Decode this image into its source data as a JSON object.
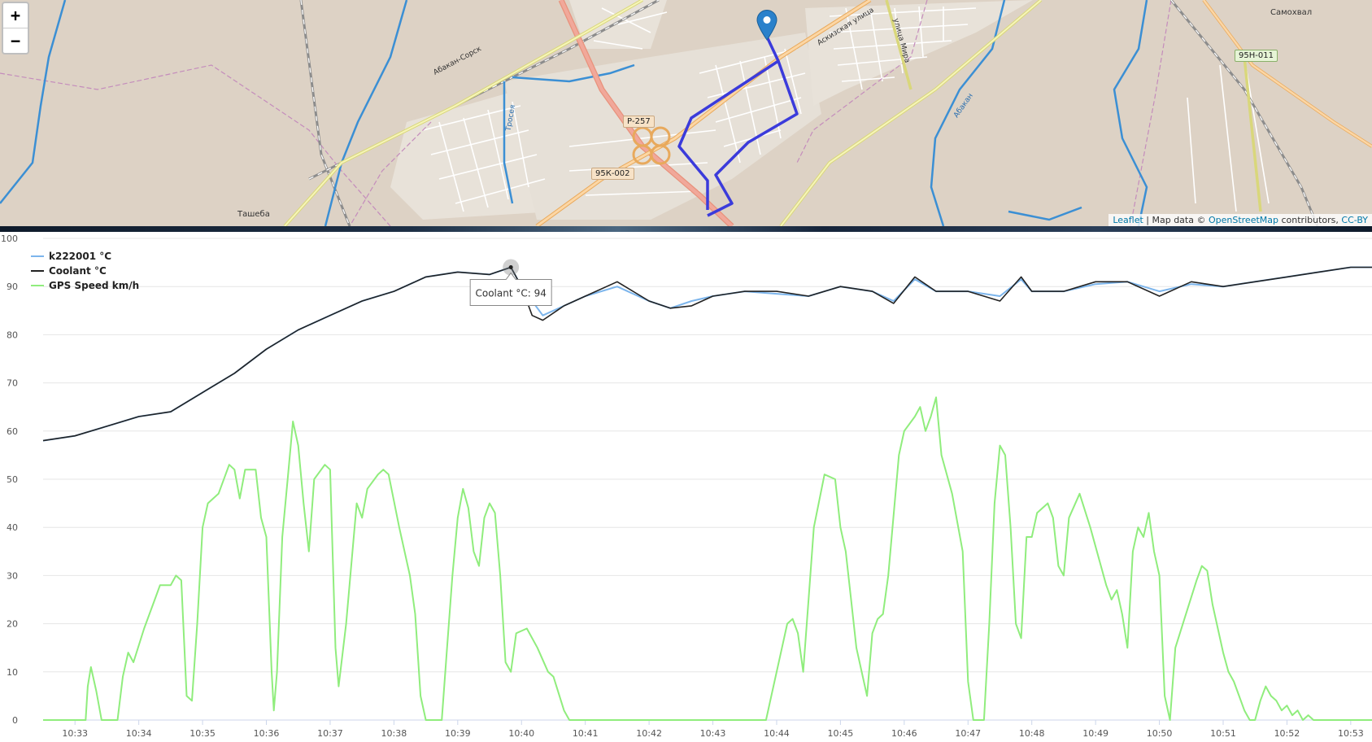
{
  "map": {
    "zoom_in": "+",
    "zoom_out": "−",
    "labels": {
      "samokhval": "Самохвал",
      "tasheba": "Ташеба",
      "abakan_sorsk": "Абакан-Сорск",
      "askizskaya": "Аскизская улица",
      "mira": "улица Мира",
      "abakan_river": "Абакан",
      "tyoe": "Тросея"
    },
    "shields": {
      "r257": "Р-257",
      "k95_002": "95К-002",
      "n95_011": "95Н-011"
    },
    "attribution": {
      "leaflet": "Leaflet",
      "sep": " | Map data © ",
      "osm": "OpenStreetMap",
      "contrib": " contributors, ",
      "license": "CC-BY"
    },
    "route_color": "#3b3bdb",
    "marker_color": "#2a81cb"
  },
  "chart_data": {
    "type": "line",
    "ylim": [
      0,
      100
    ],
    "yticks": [
      0,
      10,
      20,
      30,
      40,
      50,
      60,
      70,
      80,
      90,
      100
    ],
    "xlim": [
      "10:32:30",
      "10:53:20"
    ],
    "xticks": [
      "10:33",
      "10:34",
      "10:35",
      "10:36",
      "10:37",
      "10:38",
      "10:39",
      "10:40",
      "10:41",
      "10:42",
      "10:43",
      "10:44",
      "10:45",
      "10:46",
      "10:47",
      "10:48",
      "10:49",
      "10:50",
      "10:51",
      "10:52",
      "10:53"
    ],
    "grid": true,
    "legend_position": "top-left",
    "series": [
      {
        "name": "k222001 °C",
        "color": "#7cb5ec",
        "points": [
          [
            "10:32:30",
            58
          ],
          [
            "10:33:00",
            59
          ],
          [
            "10:33:30",
            61
          ],
          [
            "10:34:00",
            63
          ],
          [
            "10:34:30",
            64
          ],
          [
            "10:35:00",
            68
          ],
          [
            "10:35:30",
            72
          ],
          [
            "10:36:00",
            77
          ],
          [
            "10:36:30",
            81
          ],
          [
            "10:37:00",
            84
          ],
          [
            "10:37:30",
            87
          ],
          [
            "10:38:00",
            89
          ],
          [
            "10:38:30",
            92
          ],
          [
            "10:39:00",
            93
          ],
          [
            "10:39:30",
            92.5
          ],
          [
            "10:39:50",
            94
          ],
          [
            "10:40:00",
            90
          ],
          [
            "10:40:20",
            84
          ],
          [
            "10:40:40",
            86
          ],
          [
            "10:41:00",
            88
          ],
          [
            "10:41:30",
            90
          ],
          [
            "10:42:00",
            87
          ],
          [
            "10:42:20",
            85.5
          ],
          [
            "10:42:40",
            87
          ],
          [
            "10:43:00",
            88
          ],
          [
            "10:43:30",
            89
          ],
          [
            "10:44:00",
            88.5
          ],
          [
            "10:44:30",
            88
          ],
          [
            "10:45:00",
            90
          ],
          [
            "10:45:30",
            89
          ],
          [
            "10:45:50",
            87
          ],
          [
            "10:46:10",
            91.5
          ],
          [
            "10:46:30",
            89
          ],
          [
            "10:47:00",
            89
          ],
          [
            "10:47:30",
            88
          ],
          [
            "10:47:50",
            91.5
          ],
          [
            "10:48:00",
            89
          ],
          [
            "10:48:30",
            89
          ],
          [
            "10:49:00",
            90.5
          ],
          [
            "10:49:30",
            91
          ],
          [
            "10:50:00",
            89
          ],
          [
            "10:50:30",
            90.5
          ],
          [
            "10:51:00",
            90
          ],
          [
            "10:51:30",
            91
          ],
          [
            "10:52:00",
            92
          ],
          [
            "10:52:30",
            93
          ],
          [
            "10:53:00",
            94
          ],
          [
            "10:53:20",
            94
          ]
        ]
      },
      {
        "name": "Coolant °C",
        "color": "#222222",
        "points": [
          [
            "10:32:30",
            58
          ],
          [
            "10:33:00",
            59
          ],
          [
            "10:33:30",
            61
          ],
          [
            "10:34:00",
            63
          ],
          [
            "10:34:30",
            64
          ],
          [
            "10:35:00",
            68
          ],
          [
            "10:35:30",
            72
          ],
          [
            "10:36:00",
            77
          ],
          [
            "10:36:30",
            81
          ],
          [
            "10:37:00",
            84
          ],
          [
            "10:37:30",
            87
          ],
          [
            "10:38:00",
            89
          ],
          [
            "10:38:30",
            92
          ],
          [
            "10:39:00",
            93
          ],
          [
            "10:39:30",
            92.5
          ],
          [
            "10:39:50",
            94
          ],
          [
            "10:40:00",
            90
          ],
          [
            "10:40:10",
            84
          ],
          [
            "10:40:20",
            83
          ],
          [
            "10:40:40",
            86
          ],
          [
            "10:41:00",
            88
          ],
          [
            "10:41:30",
            91
          ],
          [
            "10:42:00",
            87
          ],
          [
            "10:42:20",
            85.5
          ],
          [
            "10:42:40",
            86
          ],
          [
            "10:43:00",
            88
          ],
          [
            "10:43:30",
            89
          ],
          [
            "10:44:00",
            89
          ],
          [
            "10:44:30",
            88
          ],
          [
            "10:45:00",
            90
          ],
          [
            "10:45:30",
            89
          ],
          [
            "10:45:50",
            86.5
          ],
          [
            "10:46:10",
            92
          ],
          [
            "10:46:30",
            89
          ],
          [
            "10:47:00",
            89
          ],
          [
            "10:47:30",
            87
          ],
          [
            "10:47:50",
            92
          ],
          [
            "10:48:00",
            89
          ],
          [
            "10:48:30",
            89
          ],
          [
            "10:49:00",
            91
          ],
          [
            "10:49:30",
            91
          ],
          [
            "10:50:00",
            88
          ],
          [
            "10:50:30",
            91
          ],
          [
            "10:51:00",
            90
          ],
          [
            "10:51:30",
            91
          ],
          [
            "10:52:00",
            92
          ],
          [
            "10:52:30",
            93
          ],
          [
            "10:53:00",
            94
          ],
          [
            "10:53:20",
            94
          ]
        ]
      },
      {
        "name": "GPS Speed km/h",
        "color": "#90ed7d",
        "points": [
          [
            "10:32:30",
            0
          ],
          [
            "10:33:10",
            0
          ],
          [
            "10:33:12",
            7
          ],
          [
            "10:33:15",
            11
          ],
          [
            "10:33:20",
            6
          ],
          [
            "10:33:25",
            0
          ],
          [
            "10:33:40",
            0
          ],
          [
            "10:33:45",
            9
          ],
          [
            "10:33:50",
            14
          ],
          [
            "10:33:55",
            12
          ],
          [
            "10:34:05",
            19
          ],
          [
            "10:34:15",
            25
          ],
          [
            "10:34:20",
            28
          ],
          [
            "10:34:30",
            28
          ],
          [
            "10:34:35",
            30
          ],
          [
            "10:34:40",
            29
          ],
          [
            "10:34:45",
            5
          ],
          [
            "10:34:50",
            4
          ],
          [
            "10:34:55",
            20
          ],
          [
            "10:35:00",
            40
          ],
          [
            "10:35:05",
            45
          ],
          [
            "10:35:15",
            47
          ],
          [
            "10:35:25",
            53
          ],
          [
            "10:35:30",
            52
          ],
          [
            "10:35:35",
            46
          ],
          [
            "10:35:40",
            52
          ],
          [
            "10:35:50",
            52
          ],
          [
            "10:35:55",
            42
          ],
          [
            "10:36:00",
            38
          ],
          [
            "10:36:05",
            10
          ],
          [
            "10:36:07",
            2
          ],
          [
            "10:36:10",
            10
          ],
          [
            "10:36:15",
            38
          ],
          [
            "10:36:20",
            50
          ],
          [
            "10:36:25",
            62
          ],
          [
            "10:36:30",
            57
          ],
          [
            "10:36:35",
            45
          ],
          [
            "10:36:40",
            35
          ],
          [
            "10:36:45",
            50
          ],
          [
            "10:36:55",
            53
          ],
          [
            "10:37:00",
            52
          ],
          [
            "10:37:05",
            15
          ],
          [
            "10:37:08",
            7
          ],
          [
            "10:37:15",
            20
          ],
          [
            "10:37:25",
            45
          ],
          [
            "10:37:30",
            42
          ],
          [
            "10:37:35",
            48
          ],
          [
            "10:37:45",
            51
          ],
          [
            "10:37:50",
            52
          ],
          [
            "10:37:55",
            51
          ],
          [
            "10:38:05",
            40
          ],
          [
            "10:38:15",
            30
          ],
          [
            "10:38:20",
            22
          ],
          [
            "10:38:25",
            5
          ],
          [
            "10:38:30",
            0
          ],
          [
            "10:38:45",
            0
          ],
          [
            "10:38:50",
            15
          ],
          [
            "10:38:55",
            30
          ],
          [
            "10:39:00",
            42
          ],
          [
            "10:39:05",
            48
          ],
          [
            "10:39:10",
            44
          ],
          [
            "10:39:15",
            35
          ],
          [
            "10:39:20",
            32
          ],
          [
            "10:39:25",
            42
          ],
          [
            "10:39:30",
            45
          ],
          [
            "10:39:35",
            43
          ],
          [
            "10:39:40",
            30
          ],
          [
            "10:39:45",
            12
          ],
          [
            "10:39:50",
            10
          ],
          [
            "10:39:55",
            18
          ],
          [
            "10:40:05",
            19
          ],
          [
            "10:40:15",
            15
          ],
          [
            "10:40:25",
            10
          ],
          [
            "10:40:30",
            9
          ],
          [
            "10:40:40",
            2
          ],
          [
            "10:40:45",
            0
          ],
          [
            "10:43:50",
            0
          ],
          [
            "10:43:55",
            5
          ],
          [
            "10:44:05",
            15
          ],
          [
            "10:44:10",
            20
          ],
          [
            "10:44:15",
            21
          ],
          [
            "10:44:20",
            18
          ],
          [
            "10:44:25",
            10
          ],
          [
            "10:44:30",
            25
          ],
          [
            "10:44:35",
            40
          ],
          [
            "10:44:45",
            51
          ],
          [
            "10:44:55",
            50
          ],
          [
            "10:45:00",
            40
          ],
          [
            "10:45:05",
            35
          ],
          [
            "10:45:10",
            25
          ],
          [
            "10:45:15",
            15
          ],
          [
            "10:45:25",
            5
          ],
          [
            "10:45:30",
            18
          ],
          [
            "10:45:35",
            21
          ],
          [
            "10:45:40",
            22
          ],
          [
            "10:45:45",
            30
          ],
          [
            "10:45:55",
            55
          ],
          [
            "10:46:00",
            60
          ],
          [
            "10:46:10",
            63
          ],
          [
            "10:46:15",
            65
          ],
          [
            "10:46:20",
            60
          ],
          [
            "10:46:25",
            63
          ],
          [
            "10:46:30",
            67
          ],
          [
            "10:46:35",
            55
          ],
          [
            "10:46:45",
            47
          ],
          [
            "10:46:55",
            35
          ],
          [
            "10:47:00",
            8
          ],
          [
            "10:47:05",
            0
          ],
          [
            "10:47:15",
            0
          ],
          [
            "10:47:20",
            20
          ],
          [
            "10:47:25",
            45
          ],
          [
            "10:47:30",
            57
          ],
          [
            "10:47:35",
            55
          ],
          [
            "10:47:40",
            40
          ],
          [
            "10:47:45",
            20
          ],
          [
            "10:47:50",
            17
          ],
          [
            "10:47:55",
            38
          ],
          [
            "10:48:00",
            38
          ],
          [
            "10:48:05",
            43
          ],
          [
            "10:48:15",
            45
          ],
          [
            "10:48:20",
            42
          ],
          [
            "10:48:25",
            32
          ],
          [
            "10:48:30",
            30
          ],
          [
            "10:48:35",
            42
          ],
          [
            "10:48:45",
            47
          ],
          [
            "10:48:55",
            40
          ],
          [
            "10:49:05",
            32
          ],
          [
            "10:49:10",
            28
          ],
          [
            "10:49:15",
            25
          ],
          [
            "10:49:20",
            27
          ],
          [
            "10:49:25",
            22
          ],
          [
            "10:49:30",
            15
          ],
          [
            "10:49:35",
            35
          ],
          [
            "10:49:40",
            40
          ],
          [
            "10:49:45",
            38
          ],
          [
            "10:49:50",
            43
          ],
          [
            "10:49:55",
            35
          ],
          [
            "10:50:00",
            30
          ],
          [
            "10:50:05",
            5
          ],
          [
            "10:50:10",
            0
          ],
          [
            "10:50:15",
            15
          ],
          [
            "10:50:25",
            22
          ],
          [
            "10:50:35",
            29
          ],
          [
            "10:50:40",
            32
          ],
          [
            "10:50:45",
            31
          ],
          [
            "10:50:50",
            24
          ],
          [
            "10:51:00",
            14
          ],
          [
            "10:51:05",
            10
          ],
          [
            "10:51:10",
            8
          ],
          [
            "10:51:15",
            5
          ],
          [
            "10:51:20",
            2
          ],
          [
            "10:51:25",
            0
          ],
          [
            "10:51:30",
            0
          ],
          [
            "10:51:35",
            4
          ],
          [
            "10:51:40",
            7
          ],
          [
            "10:51:45",
            5
          ],
          [
            "10:51:50",
            4
          ],
          [
            "10:51:55",
            2
          ],
          [
            "10:52:00",
            3
          ],
          [
            "10:52:05",
            1
          ],
          [
            "10:52:10",
            2
          ],
          [
            "10:52:15",
            0
          ],
          [
            "10:52:20",
            1
          ],
          [
            "10:52:25",
            0
          ],
          [
            "10:53:20",
            0
          ]
        ]
      }
    ],
    "tooltip": {
      "text": "Coolant °C: 94",
      "x": "10:39:50",
      "y": 94
    }
  }
}
